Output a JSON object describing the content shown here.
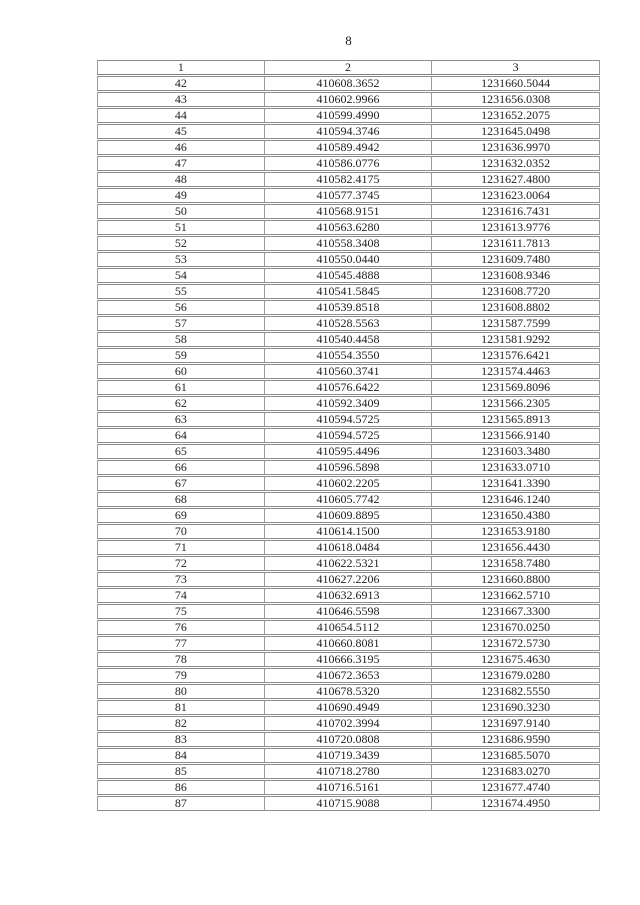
{
  "page": {
    "number": "8"
  },
  "table": {
    "headers": [
      "1",
      "2",
      "3"
    ],
    "rows": [
      [
        "42",
        "410608.3652",
        "1231660.5044"
      ],
      [
        "43",
        "410602.9966",
        "1231656.0308"
      ],
      [
        "44",
        "410599.4990",
        "1231652.2075"
      ],
      [
        "45",
        "410594.3746",
        "1231645.0498"
      ],
      [
        "46",
        "410589.4942",
        "1231636.9970"
      ],
      [
        "47",
        "410586.0776",
        "1231632.0352"
      ],
      [
        "48",
        "410582.4175",
        "1231627.4800"
      ],
      [
        "49",
        "410577.3745",
        "1231623.0064"
      ],
      [
        "50",
        "410568.9151",
        "1231616.7431"
      ],
      [
        "51",
        "410563.6280",
        "1231613.9776"
      ],
      [
        "52",
        "410558.3408",
        "1231611.7813"
      ],
      [
        "53",
        "410550.0440",
        "1231609.7480"
      ],
      [
        "54",
        "410545.4888",
        "1231608.9346"
      ],
      [
        "55",
        "410541.5845",
        "1231608.7720"
      ],
      [
        "56",
        "410539.8518",
        "1231608.8802"
      ],
      [
        "57",
        "410528.5563",
        "1231587.7599"
      ],
      [
        "58",
        "410540.4458",
        "1231581.9292"
      ],
      [
        "59",
        "410554.3550",
        "1231576.6421"
      ],
      [
        "60",
        "410560.3741",
        "1231574.4463"
      ],
      [
        "61",
        "410576.6422",
        "1231569.8096"
      ],
      [
        "62",
        "410592.3409",
        "1231566.2305"
      ],
      [
        "63",
        "410594.5725",
        "1231565.8913"
      ],
      [
        "64",
        "410594.5725",
        "1231566.9140"
      ],
      [
        "65",
        "410595.4496",
        "1231603.3480"
      ],
      [
        "66",
        "410596.5898",
        "1231633.0710"
      ],
      [
        "67",
        "410602.2205",
        "1231641.3390"
      ],
      [
        "68",
        "410605.7742",
        "1231646.1240"
      ],
      [
        "69",
        "410609.8895",
        "1231650.4380"
      ],
      [
        "70",
        "410614.1500",
        "1231653.9180"
      ],
      [
        "71",
        "410618.0484",
        "1231656.4430"
      ],
      [
        "72",
        "410622.5321",
        "1231658.7480"
      ],
      [
        "73",
        "410627.2206",
        "1231660.8800"
      ],
      [
        "74",
        "410632.6913",
        "1231662.5710"
      ],
      [
        "75",
        "410646.5598",
        "1231667.3300"
      ],
      [
        "76",
        "410654.5112",
        "1231670.0250"
      ],
      [
        "77",
        "410660.8081",
        "1231672.5730"
      ],
      [
        "78",
        "410666.3195",
        "1231675.4630"
      ],
      [
        "79",
        "410672.3653",
        "1231679.0280"
      ],
      [
        "80",
        "410678.5320",
        "1231682.5550"
      ],
      [
        "81",
        "410690.4949",
        "1231690.3230"
      ],
      [
        "82",
        "410702.3994",
        "1231697.9140"
      ],
      [
        "83",
        "410720.0808",
        "1231686.9590"
      ],
      [
        "84",
        "410719.3439",
        "1231685.5070"
      ],
      [
        "85",
        "410718.2780",
        "1231683.0270"
      ],
      [
        "86",
        "410716.5161",
        "1231677.4740"
      ],
      [
        "87",
        "410715.9088",
        "1231674.4950"
      ]
    ]
  }
}
